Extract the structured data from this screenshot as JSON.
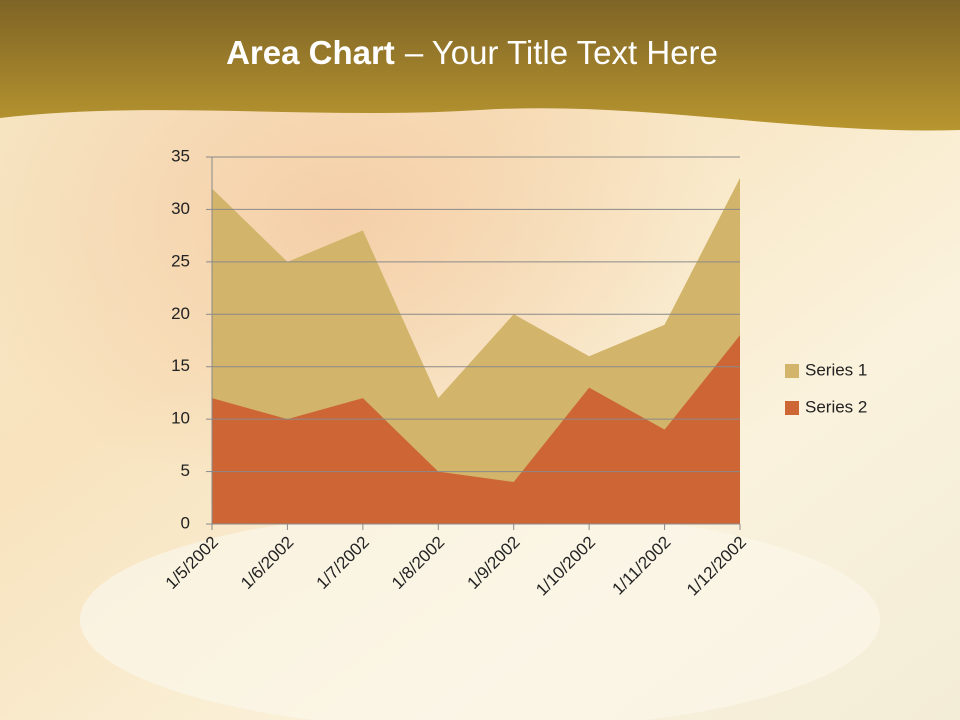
{
  "chart_data": {
    "type": "area",
    "title_bold": "Area Chart",
    "title_rest": "– Your Title Text Here",
    "categories": [
      "1/5/2002",
      "1/6/2002",
      "1/7/2002",
      "1/8/2002",
      "1/9/2002",
      "1/10/2002",
      "1/11/2002",
      "1/12/2002"
    ],
    "series": [
      {
        "name": "Series 1",
        "color": "#d2b46a",
        "values": [
          32,
          25,
          28,
          12,
          20,
          16,
          19,
          33
        ]
      },
      {
        "name": "Series 2",
        "color": "#cd6634",
        "values": [
          12,
          10,
          12,
          5,
          4,
          13,
          9,
          18
        ]
      }
    ],
    "ylim": [
      0,
      35
    ],
    "yticks": [
      0,
      5,
      10,
      15,
      20,
      25,
      30,
      35
    ],
    "grid": true,
    "legend": "right"
  }
}
